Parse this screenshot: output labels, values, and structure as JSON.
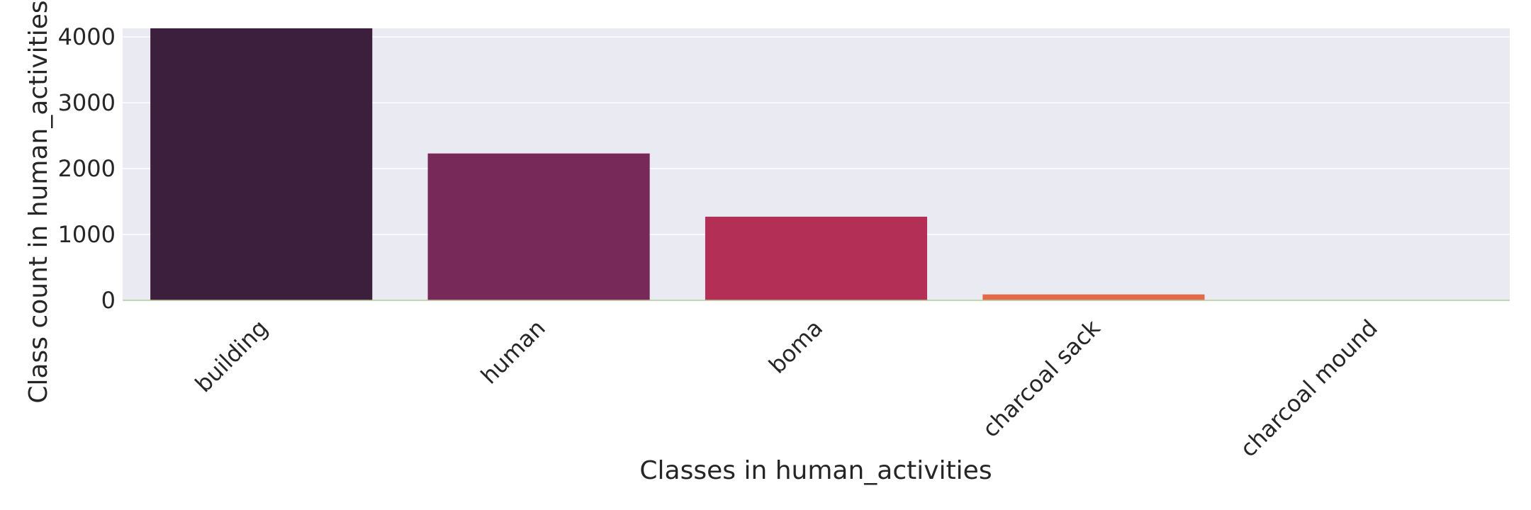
{
  "chart_data": {
    "type": "bar",
    "title": "",
    "xlabel": "Classes in human_activities",
    "ylabel": "Class count in human_activities",
    "categories": [
      "building",
      "human",
      "boma",
      "charcoal sack",
      "charcoal mound"
    ],
    "values": [
      4130,
      2230,
      1270,
      90,
      5
    ],
    "colors": [
      "#3b1f3c",
      "#772a59",
      "#b32f55",
      "#e06a4a",
      "#ecb68d"
    ],
    "yticks": [
      0,
      1000,
      2000,
      3000,
      4000
    ],
    "ylim": [
      0,
      4130
    ],
    "grid": true,
    "legend": "none",
    "plot_background": "#eaeaf2"
  }
}
